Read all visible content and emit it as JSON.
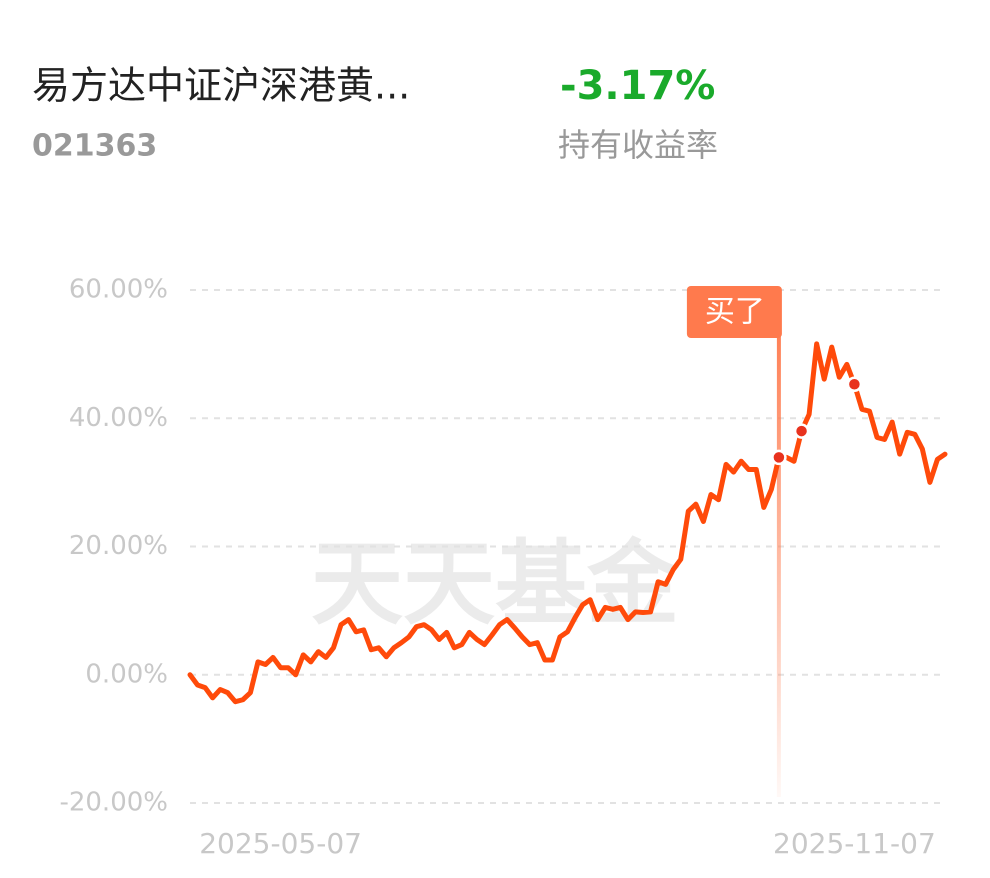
{
  "header": {
    "title": "易方达中证沪深港黄...",
    "code": "021363",
    "return": "-3.17%",
    "return_label": "持有收益率"
  },
  "chart_data": {
    "type": "line",
    "watermark": "天天基金",
    "categories": [
      null,
      null,
      null,
      null,
      null,
      null,
      null,
      null,
      null,
      null,
      null,
      null,
      "2025-05-07",
      null,
      null,
      null,
      null,
      null,
      null,
      null,
      null,
      null,
      null,
      null,
      null,
      null,
      null,
      null,
      null,
      null,
      null,
      null,
      null,
      null,
      null,
      null,
      null,
      null,
      null,
      null,
      null,
      null,
      null,
      null,
      null,
      null,
      null,
      null,
      null,
      null,
      null,
      null,
      null,
      null,
      null,
      null,
      null,
      null,
      null,
      null,
      null,
      null,
      null,
      null,
      null,
      null,
      null,
      null,
      null,
      null,
      null,
      null,
      null,
      null,
      null,
      null,
      null,
      null,
      null,
      null,
      null,
      null,
      null,
      null,
      null,
      null,
      null,
      null,
      "2025-11-07",
      null,
      null,
      null,
      null,
      null,
      null,
      null,
      null,
      null,
      null,
      null,
      null
    ],
    "series": [
      {
        "color": "#ff4a0a",
        "values": [
          0,
          -1.6,
          -2.0,
          -3.6,
          -2.3,
          -2.8,
          -4.2,
          -3.9,
          -2.8,
          2.0,
          1.6,
          2.7,
          1.1,
          1.1,
          0,
          3.1,
          2.0,
          3.6,
          2.7,
          4.2,
          7.8,
          8.6,
          6.7,
          7.0,
          3.9,
          4.2,
          2.8,
          4.2,
          5.0,
          5.9,
          7.5,
          7.8,
          7.0,
          5.5,
          6.6,
          4.2,
          4.7,
          6.6,
          5.5,
          4.7,
          6.2,
          7.8,
          8.6,
          7.3,
          5.9,
          4.7,
          5.0,
          2.3,
          2.3,
          5.9,
          6.7,
          8.9,
          10.9,
          11.7,
          8.6,
          10.5,
          10.2,
          10.5,
          8.6,
          9.8,
          9.7,
          9.8,
          14.5,
          14.1,
          16.4,
          18.0,
          25.5,
          26.6,
          23.9,
          28.1,
          27.3,
          32.8,
          31.6,
          33.3,
          32.0,
          32.0,
          26.1,
          28.9,
          33.9,
          33.9,
          33.3,
          38.0,
          40.6,
          51.6,
          46.1,
          51.1,
          46.4,
          48.4,
          45.3,
          41.4,
          41.1,
          37.0,
          36.7,
          39.4,
          34.4,
          37.8,
          37.5,
          35.2,
          30.0,
          33.6,
          34.4
        ]
      }
    ],
    "highlight_points": [
      78,
      81,
      88
    ],
    "annotation": {
      "text": "买了",
      "index": 78
    },
    "ylim": [
      -20,
      60
    ],
    "yticks": [
      {
        "value": -20,
        "label": "-20.00%"
      },
      {
        "value": 0,
        "label": "0.00%"
      },
      {
        "value": 20,
        "label": "20.00%"
      },
      {
        "value": 40,
        "label": "40.00%"
      },
      {
        "value": 60,
        "label": "60.00%"
      }
    ],
    "grid": true
  }
}
